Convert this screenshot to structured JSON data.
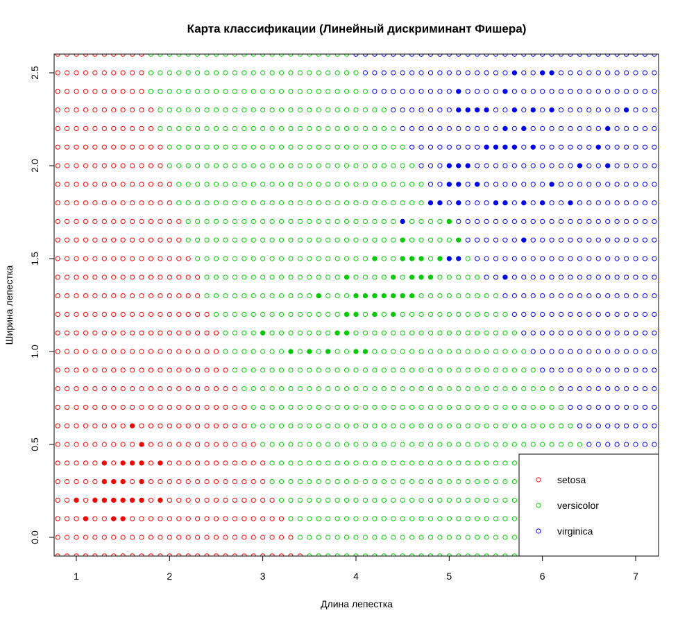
{
  "chart_data": {
    "type": "scatter",
    "title": "Карта классификации (Линейный дискриминант Фишера)",
    "xlabel": "Длина лепестка",
    "ylabel": "Ширина лепестка",
    "xlim": [
      0.77,
      7.23
    ],
    "ylim": [
      -0.1,
      2.6
    ],
    "xticks": [
      "1",
      "2",
      "3",
      "4",
      "5",
      "6",
      "7"
    ],
    "yticks": [
      "0.0",
      "0.5",
      "1.0",
      "1.5",
      "2.0",
      "2.5"
    ],
    "grid": {
      "x_start": 0.8,
      "x_step": 0.1,
      "x_count": 65,
      "y_start": -0.1,
      "y_step": 0.1,
      "y_count": 28,
      "marker": "open-circle"
    },
    "decision_boundaries": {
      "setosa_versicolor": [
        {
          "y": -0.1,
          "x_max": 3.4
        },
        {
          "y": 0.0,
          "x_max": 3.3
        },
        {
          "y": 0.1,
          "x_max": 3.2
        },
        {
          "y": 0.2,
          "x_max": 3.1
        },
        {
          "y": 0.3,
          "x_max": 3.0
        },
        {
          "y": 0.4,
          "x_max": 3.0
        },
        {
          "y": 0.5,
          "x_max": 2.9
        },
        {
          "y": 0.6,
          "x_max": 2.8
        },
        {
          "y": 0.7,
          "x_max": 2.8
        },
        {
          "y": 0.8,
          "x_max": 2.7
        },
        {
          "y": 0.9,
          "x_max": 2.6
        },
        {
          "y": 1.0,
          "x_max": 2.5
        },
        {
          "y": 1.1,
          "x_max": 2.5
        },
        {
          "y": 1.2,
          "x_max": 2.4
        },
        {
          "y": 1.3,
          "x_max": 2.3
        },
        {
          "y": 1.4,
          "x_max": 2.3
        },
        {
          "y": 1.5,
          "x_max": 2.2
        },
        {
          "y": 1.6,
          "x_max": 2.1
        },
        {
          "y": 1.7,
          "x_max": 2.1
        },
        {
          "y": 1.8,
          "x_max": 2.0
        },
        {
          "y": 1.9,
          "x_max": 2.0
        },
        {
          "y": 2.0,
          "x_max": 1.9
        },
        {
          "y": 2.1,
          "x_max": 1.9
        },
        {
          "y": 2.2,
          "x_max": 1.8
        },
        {
          "y": 2.3,
          "x_max": 1.8
        },
        {
          "y": 2.4,
          "x_max": 1.7
        },
        {
          "y": 2.5,
          "x_max": 1.7
        },
        {
          "y": 2.6,
          "x_max": 1.7
        }
      ],
      "versicolor_virginica": [
        {
          "y": 0.5,
          "x_min": 6.5
        },
        {
          "y": 0.6,
          "x_min": 6.4
        },
        {
          "y": 0.7,
          "x_min": 6.3
        },
        {
          "y": 0.8,
          "x_min": 6.2
        },
        {
          "y": 0.9,
          "x_min": 6.0
        },
        {
          "y": 1.0,
          "x_min": 5.9
        },
        {
          "y": 1.1,
          "x_min": 5.8
        },
        {
          "y": 1.2,
          "x_min": 5.7
        },
        {
          "y": 1.3,
          "x_min": 5.6
        },
        {
          "y": 1.4,
          "x_min": 5.4
        },
        {
          "y": 1.5,
          "x_min": 5.3
        },
        {
          "y": 1.6,
          "x_min": 5.2
        },
        {
          "y": 1.7,
          "x_min": 5.1
        },
        {
          "y": 1.8,
          "x_min": 5.0
        },
        {
          "y": 1.9,
          "x_min": 4.8
        },
        {
          "y": 2.0,
          "x_min": 4.7
        },
        {
          "y": 2.1,
          "x_min": 4.6
        },
        {
          "y": 2.2,
          "x_min": 4.5
        },
        {
          "y": 2.3,
          "x_min": 4.4
        },
        {
          "y": 2.4,
          "x_min": 4.2
        },
        {
          "y": 2.5,
          "x_min": 4.1
        },
        {
          "y": 2.6,
          "x_min": 4.0
        }
      ]
    },
    "series": [
      {
        "name": "setosa",
        "color": "#ff0000",
        "points": [
          [
            1.0,
            0.2
          ],
          [
            1.1,
            0.1
          ],
          [
            1.2,
            0.2
          ],
          [
            1.3,
            0.2
          ],
          [
            1.3,
            0.3
          ],
          [
            1.3,
            0.4
          ],
          [
            1.4,
            0.1
          ],
          [
            1.4,
            0.2
          ],
          [
            1.4,
            0.3
          ],
          [
            1.5,
            0.1
          ],
          [
            1.5,
            0.2
          ],
          [
            1.5,
            0.3
          ],
          [
            1.5,
            0.4
          ],
          [
            1.6,
            0.2
          ],
          [
            1.6,
            0.4
          ],
          [
            1.6,
            0.6
          ],
          [
            1.7,
            0.2
          ],
          [
            1.7,
            0.3
          ],
          [
            1.7,
            0.4
          ],
          [
            1.7,
            0.5
          ],
          [
            1.9,
            0.2
          ],
          [
            1.9,
            0.4
          ]
        ]
      },
      {
        "name": "versicolor",
        "color": "#00cc00",
        "points": [
          [
            3.0,
            1.1
          ],
          [
            3.3,
            1.0
          ],
          [
            3.5,
            1.0
          ],
          [
            3.6,
            1.3
          ],
          [
            3.7,
            1.0
          ],
          [
            3.8,
            1.1
          ],
          [
            3.9,
            1.1
          ],
          [
            3.9,
            1.2
          ],
          [
            3.9,
            1.4
          ],
          [
            4.0,
            1.0
          ],
          [
            4.0,
            1.2
          ],
          [
            4.0,
            1.3
          ],
          [
            4.1,
            1.0
          ],
          [
            4.1,
            1.3
          ],
          [
            4.2,
            1.2
          ],
          [
            4.2,
            1.3
          ],
          [
            4.2,
            1.5
          ],
          [
            4.3,
            1.3
          ],
          [
            4.4,
            1.2
          ],
          [
            4.4,
            1.3
          ],
          [
            4.4,
            1.4
          ],
          [
            4.5,
            1.3
          ],
          [
            4.5,
            1.5
          ],
          [
            4.5,
            1.6
          ],
          [
            4.6,
            1.3
          ],
          [
            4.6,
            1.4
          ],
          [
            4.6,
            1.5
          ],
          [
            4.7,
            1.4
          ],
          [
            4.7,
            1.5
          ],
          [
            4.8,
            1.4
          ],
          [
            4.9,
            1.5
          ],
          [
            5.0,
            1.7
          ],
          [
            5.1,
            1.6
          ]
        ]
      },
      {
        "name": "virginica",
        "color": "#0000ff",
        "points": [
          [
            4.5,
            1.7
          ],
          [
            4.8,
            1.8
          ],
          [
            4.9,
            1.8
          ],
          [
            5.0,
            1.5
          ],
          [
            5.0,
            1.9
          ],
          [
            5.0,
            2.0
          ],
          [
            5.1,
            1.5
          ],
          [
            5.1,
            1.8
          ],
          [
            5.1,
            1.9
          ],
          [
            5.1,
            2.0
          ],
          [
            5.1,
            2.3
          ],
          [
            5.1,
            2.4
          ],
          [
            5.2,
            2.0
          ],
          [
            5.2,
            2.3
          ],
          [
            5.3,
            1.9
          ],
          [
            5.3,
            2.3
          ],
          [
            5.4,
            2.1
          ],
          [
            5.4,
            2.3
          ],
          [
            5.5,
            1.8
          ],
          [
            5.5,
            2.1
          ],
          [
            5.6,
            1.4
          ],
          [
            5.6,
            1.8
          ],
          [
            5.6,
            2.1
          ],
          [
            5.6,
            2.2
          ],
          [
            5.6,
            2.4
          ],
          [
            5.7,
            2.1
          ],
          [
            5.7,
            2.3
          ],
          [
            5.7,
            2.5
          ],
          [
            5.8,
            1.6
          ],
          [
            5.8,
            1.8
          ],
          [
            5.8,
            2.2
          ],
          [
            5.9,
            2.1
          ],
          [
            5.9,
            2.3
          ],
          [
            6.0,
            1.8
          ],
          [
            6.0,
            2.5
          ],
          [
            6.1,
            1.9
          ],
          [
            6.1,
            2.3
          ],
          [
            6.1,
            2.5
          ],
          [
            6.3,
            1.8
          ],
          [
            6.4,
            2.0
          ],
          [
            6.6,
            2.1
          ],
          [
            6.7,
            2.0
          ],
          [
            6.7,
            2.2
          ],
          [
            6.9,
            2.3
          ]
        ]
      }
    ],
    "legend": {
      "placement": "bottom-right",
      "entries": [
        "setosa",
        "versicolor",
        "virginica"
      ]
    }
  }
}
